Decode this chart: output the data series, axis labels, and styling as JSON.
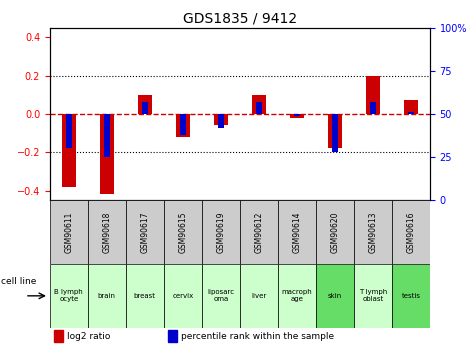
{
  "title": "GDS1835 / 9412",
  "samples": [
    "GSM90611",
    "GSM90618",
    "GSM90617",
    "GSM90615",
    "GSM90619",
    "GSM90612",
    "GSM90614",
    "GSM90620",
    "GSM90613",
    "GSM90616"
  ],
  "cell_lines_line1": [
    "B lymph",
    "brain",
    "breast",
    "cervix",
    "liposarc",
    "liver",
    "macroph",
    "skin",
    "T lymph",
    "testis"
  ],
  "cell_lines_line2": [
    "ocyte",
    "",
    "",
    "",
    "oma",
    "",
    "age",
    "",
    "oblast",
    ""
  ],
  "log2_ratios": [
    -0.38,
    -0.42,
    0.1,
    -0.12,
    -0.06,
    0.1,
    -0.02,
    -0.18,
    0.2,
    0.07
  ],
  "percentile_ranks": [
    30,
    25,
    57,
    38,
    42,
    57,
    49,
    28,
    57,
    51
  ],
  "ylim_left": [
    -0.45,
    0.45
  ],
  "ylim_right": [
    0,
    100
  ],
  "bar_color_red": "#cc0000",
  "bar_color_blue": "#0000cc",
  "bg_color": "#ffffff",
  "plot_bg": "#ffffff",
  "gsm_bg": "#cccccc",
  "cell_bg_colors": [
    "#ccffcc",
    "#ccffcc",
    "#ccffcc",
    "#ccffcc",
    "#ccffcc",
    "#ccffcc",
    "#ccffcc",
    "#66dd66",
    "#ccffcc",
    "#66dd66"
  ],
  "dashed_zero_color": "#cc0000",
  "yticks_left": [
    -0.4,
    -0.2,
    0.0,
    0.2,
    0.4
  ],
  "yticks_right": [
    0,
    25,
    50,
    75,
    100
  ],
  "bar_width": 0.35
}
